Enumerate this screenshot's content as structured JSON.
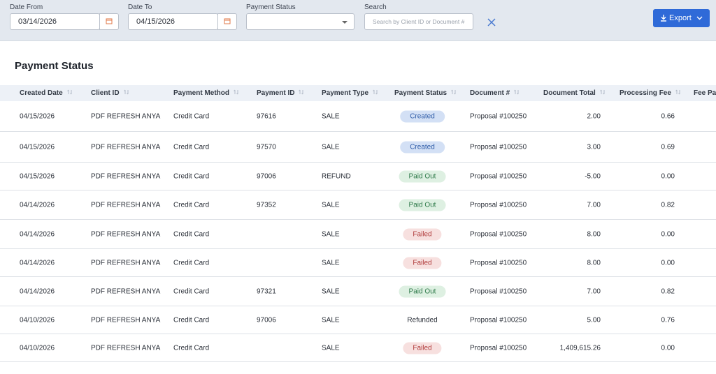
{
  "filters": {
    "date_from": {
      "label": "Date From",
      "value": "03/14/2026"
    },
    "date_to": {
      "label": "Date To",
      "value": "04/15/2026"
    },
    "payment_status": {
      "label": "Payment Status"
    },
    "search": {
      "label": "Search",
      "placeholder": "Search by Client ID or Document #"
    },
    "export": "Export"
  },
  "title": "Payment Status",
  "table": {
    "columns": [
      "Created Date",
      "Client ID",
      "Payment Method",
      "Payment ID",
      "Payment Type",
      "Payment Status",
      "Document #",
      "Document Total",
      "Processing Fee",
      "Fee Pa"
    ],
    "rows": [
      [
        "04/15/2026",
        "PDF REFRESH ANYA",
        "Credit Card",
        "97616",
        "SALE",
        {
          "text": "Created",
          "background": "#d3e0f5",
          "color": "#2f5ca8"
        },
        "Proposal #100250",
        "2.00",
        "0.66"
      ],
      [
        "04/15/2026",
        "PDF REFRESH ANYA",
        "Credit Card",
        "97570",
        "SALE",
        {
          "text": "Created",
          "background": "#d3e0f5",
          "color": "#2f5ca8"
        },
        "Proposal #100250",
        "3.00",
        "0.69"
      ],
      [
        "04/15/2026",
        "PDF REFRESH ANYA",
        "Credit Card",
        "97006",
        "REFUND",
        {
          "text": "Paid Out",
          "background": "#def0e2",
          "color": "#2f7a4a"
        },
        "Proposal #100250",
        "-5.00",
        "0.00"
      ],
      [
        "04/14/2026",
        "PDF REFRESH ANYA",
        "Credit Card",
        "97352",
        "SALE",
        {
          "text": "Paid Out",
          "background": "#def0e2",
          "color": "#2f7a4a"
        },
        "Proposal #100250",
        "7.00",
        "0.82"
      ],
      [
        "04/14/2026",
        "PDF REFRESH ANYA",
        "Credit Card",
        null,
        "SALE",
        {
          "text": "Failed",
          "background": "#f7e0df",
          "color": "#b03c3c"
        },
        "Proposal #100250",
        "8.00",
        "0.00"
      ],
      [
        "04/14/2026",
        "PDF REFRESH ANYA",
        "Credit Card",
        null,
        "SALE",
        {
          "text": "Failed",
          "background": "#f7e0df",
          "color": "#b03c3c"
        },
        "Proposal #100250",
        "8.00",
        "0.00"
      ],
      [
        "04/14/2026",
        "PDF REFRESH ANYA",
        "Credit Card",
        "97321",
        "SALE",
        {
          "text": "Paid Out",
          "background": "#def0e2",
          "color": "#2f7a4a"
        },
        "Proposal #100250",
        "7.00",
        "0.82"
      ],
      [
        "04/10/2026",
        "PDF REFRESH ANYA",
        "Credit Card",
        "97006",
        "SALE",
        {
          "text": "Refunded"
        },
        "Proposal #100250",
        "5.00",
        "0.76"
      ],
      [
        "04/10/2026",
        "PDF REFRESH ANYA",
        "Credit Card",
        null,
        "SALE",
        {
          "text": "Failed",
          "background": "#f7e0df",
          "color": "#b03c3c"
        },
        "Proposal #100250",
        "1,409,615.26",
        "0.00"
      ]
    ]
  }
}
